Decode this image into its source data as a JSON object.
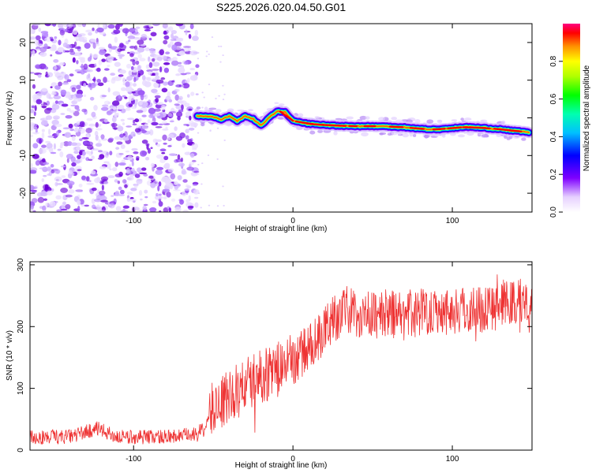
{
  "title": "S225.2026.020.04.50.G01",
  "chart_data": [
    {
      "type": "heatmap",
      "title": "S225.2026.020.04.50.G01",
      "xlabel": "Height of straight line (km)",
      "ylabel": "Frequency (Hz)",
      "xlim": [
        -165,
        150
      ],
      "ylim": [
        -25,
        25
      ],
      "xticks": [
        -100,
        0,
        100
      ],
      "xtick_labels": [
        "-100",
        "0",
        "100"
      ],
      "yticks": [
        -20,
        -10,
        0,
        10,
        20
      ],
      "ytick_labels": [
        "-20",
        "-10",
        "0",
        "10",
        "20"
      ],
      "noise_region_x": [
        -165,
        -60
      ],
      "ridge": {
        "x": [
          -60,
          -50,
          -45,
          -40,
          -35,
          -30,
          -25,
          -20,
          -15,
          -10,
          -5,
          0,
          10,
          20,
          30,
          40,
          50,
          60,
          70,
          80,
          90,
          100,
          110,
          120,
          130,
          140,
          148
        ],
        "freq": [
          0.5,
          0.3,
          -0.5,
          0.5,
          -0.8,
          0.5,
          -0.3,
          -2.0,
          0.0,
          1.8,
          1.5,
          -0.8,
          -1.6,
          -1.9,
          -2.1,
          -2.2,
          -2.2,
          -2.3,
          -2.5,
          -2.9,
          -3.1,
          -2.7,
          -2.4,
          -2.7,
          -3.0,
          -3.5,
          -3.8
        ]
      },
      "colorbar": {
        "label": "Normalized spectral amplitude",
        "range": [
          0,
          1
        ],
        "ticks": [
          0.0,
          0.2,
          0.4,
          0.6,
          0.8
        ],
        "tick_labels": [
          "0.0",
          "0.2",
          "0.4",
          "0.6",
          "0.8"
        ]
      }
    },
    {
      "type": "line",
      "xlabel": "Height of straight line (km)",
      "ylabel": "SNR (10 * v/v)",
      "xlim": [
        -165,
        150
      ],
      "ylim": [
        0,
        305
      ],
      "xticks": [
        -100,
        0,
        100
      ],
      "xtick_labels": [
        "-100",
        "0",
        "100"
      ],
      "yticks": [
        0,
        100,
        200,
        300
      ],
      "ytick_labels": [
        "0",
        "100",
        "200",
        "300"
      ],
      "series": [
        {
          "name": "SNR",
          "color": "#ee3333",
          "x": [
            -165,
            -140,
            -123,
            -110,
            -80,
            -62,
            -55,
            -50,
            -40,
            -30,
            -20,
            -10,
            0,
            10,
            20,
            25,
            35,
            50,
            60,
            70,
            80,
            90,
            100,
            110,
            120,
            130,
            140,
            150
          ],
          "mean": [
            20,
            22,
            35,
            21,
            22,
            25,
            35,
            70,
            85,
            105,
            120,
            130,
            145,
            165,
            195,
            215,
            225,
            218,
            222,
            215,
            225,
            228,
            225,
            228,
            230,
            235,
            240,
            245
          ]
        }
      ]
    }
  ]
}
